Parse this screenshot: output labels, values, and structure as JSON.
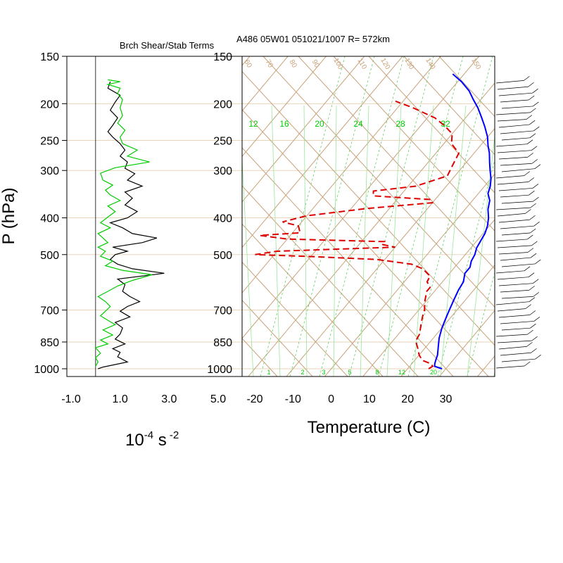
{
  "chart_data": [
    {
      "type": "line",
      "title": "Brch Shear/Stab Terms",
      "ylabel": "P (hPa)",
      "xlabel_main": "10",
      "xlabel_exp1": "-4",
      "xlabel_unit": " s",
      "xlabel_exp2": " -2",
      "y_scale": "log",
      "ylim": [
        1050,
        150
      ],
      "xlim": [
        -1.0,
        5.0
      ],
      "x_ticks": [
        "-1.0",
        "1.0",
        "3.0",
        "5.0"
      ],
      "x_tick_values": [
        -1.0,
        1.0,
        3.0,
        5.0
      ],
      "y_ticks": [
        "150",
        "200",
        "250",
        "300",
        "400",
        "500",
        "700",
        "850",
        "1000"
      ],
      "y_tick_values": [
        150,
        200,
        250,
        300,
        400,
        500,
        700,
        850,
        1000
      ],
      "zero_line": 0.0,
      "series": [
        {
          "color": "#000000",
          "points": [
            [
              0.1,
              1000
            ],
            [
              0.3,
              990
            ],
            [
              1.3,
              960
            ],
            [
              0.9,
              930
            ],
            [
              1.0,
              905
            ],
            [
              0.7,
              885
            ],
            [
              1.2,
              860
            ],
            [
              0.8,
              835
            ],
            [
              1.0,
              810
            ],
            [
              1.1,
              780
            ],
            [
              0.8,
              755
            ],
            [
              1.4,
              730
            ],
            [
              1.0,
              705
            ],
            [
              1.3,
              685
            ],
            [
              1.8,
              665
            ],
            [
              1.4,
              645
            ],
            [
              1.1,
              625
            ],
            [
              1.2,
              600
            ],
            [
              0.9,
              580
            ],
            [
              2.8,
              560
            ],
            [
              1.5,
              545
            ],
            [
              0.9,
              530
            ],
            [
              0.6,
              515
            ],
            [
              0.8,
              500
            ],
            [
              1.3,
              490
            ],
            [
              0.7,
              478
            ],
            [
              1.9,
              465
            ],
            [
              2.5,
              452
            ],
            [
              1.5,
              440
            ],
            [
              1.1,
              425
            ],
            [
              0.6,
              412
            ],
            [
              1.3,
              400
            ],
            [
              1.7,
              385
            ],
            [
              1.2,
              370
            ],
            [
              1.5,
              355
            ],
            [
              1.2,
              342
            ],
            [
              1.9,
              330
            ],
            [
              1.3,
              318
            ],
            [
              1.6,
              306
            ],
            [
              1.2,
              296
            ],
            [
              1.3,
              285
            ],
            [
              1.0,
              275
            ],
            [
              1.2,
              265
            ],
            [
              1.0,
              255
            ],
            [
              0.7,
              245
            ],
            [
              0.5,
              237
            ],
            [
              0.7,
              228
            ],
            [
              0.9,
              218
            ],
            [
              0.6,
              208
            ],
            [
              0.8,
              198
            ],
            [
              1.0,
              190
            ],
            [
              0.5,
              182
            ],
            [
              0.6,
              175
            ]
          ]
        },
        {
          "color": "#00cc00",
          "points": [
            [
              0.0,
              985
            ],
            [
              0.1,
              960
            ],
            [
              0.0,
              935
            ],
            [
              0.2,
              910
            ],
            [
              0.0,
              880
            ],
            [
              0.5,
              860
            ],
            [
              0.2,
              840
            ],
            [
              0.7,
              815
            ],
            [
              0.3,
              790
            ],
            [
              0.8,
              765
            ],
            [
              0.5,
              745
            ],
            [
              0.2,
              725
            ],
            [
              0.4,
              705
            ],
            [
              0.6,
              685
            ],
            [
              0.4,
              665
            ],
            [
              0.1,
              645
            ],
            [
              0.5,
              625
            ],
            [
              0.9,
              605
            ],
            [
              1.5,
              585
            ],
            [
              2.3,
              565
            ],
            [
              1.1,
              550
            ],
            [
              0.4,
              535
            ],
            [
              0.7,
              520
            ],
            [
              0.2,
              505
            ],
            [
              0.4,
              490
            ],
            [
              0.1,
              478
            ],
            [
              0.5,
              465
            ],
            [
              0.3,
              452
            ],
            [
              0.1,
              440
            ],
            [
              0.6,
              425
            ],
            [
              0.2,
              412
            ],
            [
              0.5,
              398
            ],
            [
              0.8,
              385
            ],
            [
              0.5,
              372
            ],
            [
              1.0,
              360
            ],
            [
              0.6,
              348
            ],
            [
              0.4,
              338
            ],
            [
              0.7,
              328
            ],
            [
              0.3,
              318
            ],
            [
              0.2,
              305
            ],
            [
              0.8,
              295
            ],
            [
              2.2,
              285
            ],
            [
              1.3,
              275
            ],
            [
              1.7,
              265
            ],
            [
              1.1,
              255
            ],
            [
              1.0,
              245
            ],
            [
              1.2,
              235
            ],
            [
              0.9,
              225
            ],
            [
              1.1,
              215
            ],
            [
              1.0,
              205
            ],
            [
              1.1,
              195
            ],
            [
              0.9,
              188
            ],
            [
              1.0,
              182
            ],
            [
              0.5,
              178
            ],
            [
              1.0,
              175
            ],
            [
              0.5,
              173
            ]
          ]
        }
      ]
    },
    {
      "type": "line",
      "title": "A486 05W01 051021/1007 R= 572km",
      "xlabel": "Temperature (C)",
      "ylabel": "",
      "chart_kind": "skew-T log-P",
      "y_scale": "log",
      "ylim": [
        1050,
        150
      ],
      "x_ticks": [
        "-20",
        "-10",
        "0",
        "10",
        "20",
        "30"
      ],
      "x_tick_values": [
        -20,
        -10,
        0,
        10,
        20,
        30
      ],
      "y_ticks": [
        "150",
        "200",
        "250",
        "300",
        "400",
        "500",
        "700",
        "850",
        "1000"
      ],
      "y_tick_values": [
        150,
        200,
        250,
        300,
        400,
        500,
        700,
        850,
        1000
      ],
      "mixing_ratio_labels": [
        "12",
        "16",
        "20",
        "24",
        "28",
        "32"
      ],
      "mixing_ratio_colors": "#00cc00",
      "adiabat_labels": [
        "60",
        "70",
        "80",
        "90",
        "100",
        "110",
        "120",
        "130",
        "140",
        "150"
      ],
      "adiabat_color": "#c8a27a",
      "bottom_labels": [
        "1",
        "2",
        "3",
        "5",
        "8",
        "12",
        "20"
      ],
      "series": [
        {
          "name": "",
          "style": "solid",
          "color": "#0000ff",
          "points": [
            [
              29,
              1000
            ],
            [
              26.5,
              985
            ],
            [
              26,
              970
            ],
            [
              25.5,
              950
            ],
            [
              24.8,
              920
            ],
            [
              23,
              870
            ],
            [
              21.5,
              830
            ],
            [
              20,
              780
            ],
            [
              19,
              740
            ],
            [
              18,
              700
            ],
            [
              17,
              660
            ],
            [
              16,
              620
            ],
            [
              15.5,
              590
            ],
            [
              14,
              560
            ],
            [
              14,
              540
            ],
            [
              13,
              520
            ],
            [
              12.5,
              500
            ],
            [
              11.5,
              480
            ],
            [
              11,
              460
            ],
            [
              10.5,
              440
            ],
            [
              9.5,
              420
            ],
            [
              8,
              400
            ],
            [
              6,
              380
            ],
            [
              4.5,
              360
            ],
            [
              2.5,
              345
            ],
            [
              1.5,
              330
            ],
            [
              0,
              315
            ],
            [
              -2,
              300
            ],
            [
              -4,
              285
            ],
            [
              -6,
              270
            ],
            [
              -8,
              258
            ],
            [
              -10,
              245
            ],
            [
              -13,
              230
            ],
            [
              -16,
              217
            ],
            [
              -19,
              205
            ],
            [
              -22,
              195
            ],
            [
              -25,
              185
            ],
            [
              -29,
              175
            ],
            [
              -33,
              167
            ]
          ]
        },
        {
          "name": "",
          "style": "dashed",
          "color": "#dd0000",
          "points": [
            [
              25.5,
              1000
            ],
            [
              26,
              985
            ],
            [
              25,
              970
            ],
            [
              22,
              950
            ],
            [
              20,
              920
            ],
            [
              18,
              880
            ],
            [
              16,
              845
            ],
            [
              15.5,
              810
            ],
            [
              14,
              770
            ],
            [
              12.5,
              730
            ],
            [
              11.5,
              700
            ],
            [
              9.5,
              660
            ],
            [
              8,
              625
            ],
            [
              8,
              610
            ],
            [
              6,
              590
            ],
            [
              5.5,
              570
            ],
            [
              2,
              545
            ],
            [
              -2,
              530
            ],
            [
              -12,
              515
            ],
            [
              -32,
              505
            ],
            [
              -45,
              500
            ],
            [
              -40,
              490
            ],
            [
              -10,
              478
            ],
            [
              -14,
              470
            ],
            [
              -14,
              462
            ],
            [
              -40,
              455
            ],
            [
              -48,
              445
            ],
            [
              -38,
              438
            ],
            [
              -40,
              420
            ],
            [
              -45,
              410
            ],
            [
              -40,
              395
            ],
            [
              -26,
              378
            ],
            [
              -10,
              365
            ],
            [
              -11,
              358
            ],
            [
              -27,
              350
            ],
            [
              -28,
              340
            ],
            [
              -18,
              330
            ],
            [
              -12,
              310
            ],
            [
              -13,
              290
            ],
            [
              -14,
              270
            ],
            [
              -18,
              255
            ],
            [
              -20,
              240
            ],
            [
              -24,
              228
            ],
            [
              -28,
              218
            ],
            [
              -36,
              205
            ],
            [
              -42,
              197
            ]
          ]
        }
      ],
      "wind_barbs_present": true
    }
  ]
}
